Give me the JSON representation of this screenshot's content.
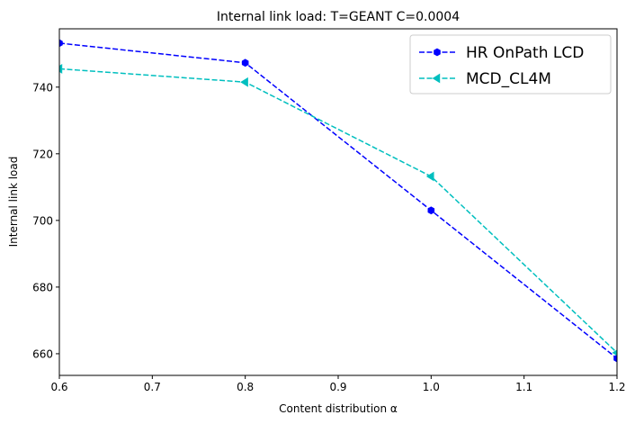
{
  "chart_data": {
    "type": "line",
    "title": "Internal link load: T=GEANT C=0.0004",
    "xlabel": "Content distribution α",
    "ylabel": "Internal link load",
    "xlim": [
      0.6,
      1.2
    ],
    "ylim": [
      653.5,
      757.5
    ],
    "xticks": [
      0.6,
      0.7,
      0.8,
      0.9,
      1.0,
      1.1,
      1.2
    ],
    "xtick_labels": [
      "0.6",
      "0.7",
      "0.8",
      "0.9",
      "1.0",
      "1.1",
      "1.2"
    ],
    "yticks": [
      660,
      680,
      700,
      720,
      740
    ],
    "ytick_labels": [
      "660",
      "680",
      "700",
      "720",
      "740"
    ],
    "grid": false,
    "legend_position": "top-right",
    "series": [
      {
        "name": "HR OnPath LCD",
        "color": "#0000ff",
        "marker": "hexagon",
        "linestyle": "dashed",
        "x": [
          0.6,
          0.8,
          1.0,
          1.2
        ],
        "y": [
          753.2,
          747.3,
          703.0,
          658.6
        ]
      },
      {
        "name": "MCD_CL4M",
        "color": "#00bfbf",
        "marker": "triangle-left",
        "linestyle": "dashed",
        "x": [
          0.6,
          0.8,
          1.0,
          1.2
        ],
        "y": [
          745.5,
          741.5,
          713.2,
          660.3
        ]
      }
    ]
  }
}
